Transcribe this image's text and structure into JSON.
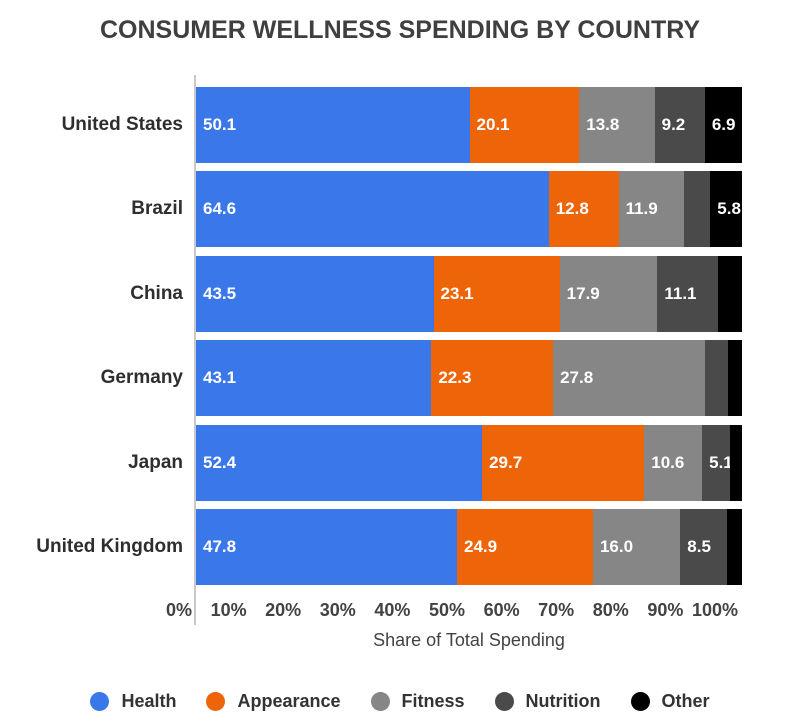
{
  "title": "CONSUMER WELLNESS SPENDING BY COUNTRY",
  "chart_data": {
    "type": "bar",
    "orientation": "horizontal",
    "stacked": true,
    "title": "CONSUMER WELLNESS SPENDING BY COUNTRY",
    "xlabel": "Share of Total Spending",
    "xlim": [
      0,
      100
    ],
    "x_ticks": [
      "0%",
      "10%",
      "20%",
      "30%",
      "40%",
      "50%",
      "60%",
      "70%",
      "80%",
      "90%",
      "100%"
    ],
    "grid": false,
    "legend_position": "bottom",
    "value_labels": "shown inside segments when value >= 5, one decimal",
    "value_label_min": 5,
    "categories": [
      "United States",
      "Brazil",
      "China",
      "Germany",
      "Japan",
      "United Kingdom"
    ],
    "series": [
      {
        "name": "Health",
        "color": "#3A77E8",
        "values": [
          50.1,
          64.6,
          43.5,
          43.1,
          52.4,
          47.8
        ]
      },
      {
        "name": "Appearance",
        "color": "#EE6509",
        "values": [
          20.1,
          12.8,
          23.1,
          22.3,
          29.7,
          24.9
        ]
      },
      {
        "name": "Fitness",
        "color": "#868686",
        "values": [
          13.8,
          11.9,
          17.9,
          27.8,
          10.6,
          16.0
        ]
      },
      {
        "name": "Nutrition",
        "color": "#4A4A4A",
        "values": [
          9.2,
          4.9,
          11.1,
          4.2,
          5.1,
          8.5
        ]
      },
      {
        "name": "Other",
        "color": "#000000",
        "values": [
          6.9,
          5.8,
          4.4,
          2.6,
          2.2,
          2.8
        ]
      }
    ]
  },
  "colors": {
    "background": "#FFFFFF",
    "title_text": "#3F3F3F",
    "axis_text": "#424242",
    "category_text": "#2E2E2E",
    "bar_value_text": "#FFFFFF",
    "axis_line": "#C8C8C8"
  }
}
